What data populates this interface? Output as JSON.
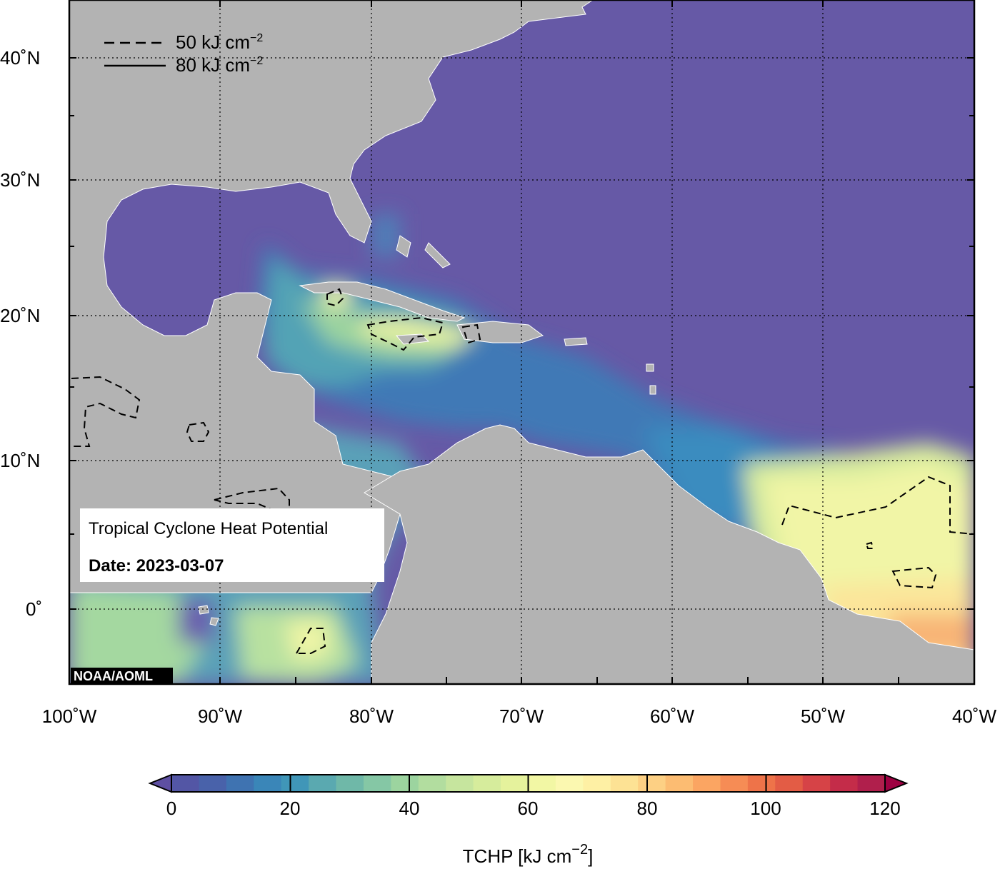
{
  "map": {
    "lon_ticks": [
      "100˚W",
      "90˚W",
      "80˚W",
      "70˚W",
      "60˚W",
      "50˚W",
      "40˚W"
    ],
    "lat_ticks": [
      "40˚N",
      "30˚N",
      "20˚N",
      "10˚N",
      "0˚"
    ],
    "legend": {
      "dashed": "50 kJ cm",
      "solid": "80 kJ cm",
      "exponent": "−2"
    },
    "info_box": {
      "title": "Tropical Cyclone Heat Potential",
      "date": "Date: 2023-03-07"
    },
    "credit": "NOAA/AOML",
    "colors": {
      "land": "#b3b3b3",
      "ocean_low": "#6659a6",
      "ocean_mid": "#3a8cbf",
      "ocean_green": "#9fd59c",
      "ocean_yellow": "#eef5a6",
      "ocean_orange": "#f8b476"
    }
  },
  "colorbar": {
    "ticks": [
      "0",
      "20",
      "40",
      "60",
      "80",
      "100",
      "120"
    ],
    "label": "TCHP [kJ cm",
    "label_exponent": "−2",
    "label_close": "]",
    "colors": [
      "#5e4fa2",
      "#5356a5",
      "#4962aa",
      "#3f73b1",
      "#3a86b8",
      "#4096b8",
      "#5aa9b0",
      "#6fb8a8",
      "#85c7a5",
      "#9cd49f",
      "#b2dd9f",
      "#c6e59e",
      "#d6ec9c",
      "#e5f29c",
      "#f2f7a4",
      "#fbf8b0",
      "#fef0a4",
      "#fde294",
      "#fdd084",
      "#fcbc72",
      "#fba562",
      "#f68c55",
      "#ee7349",
      "#e35c45",
      "#d64347",
      "#c42c49",
      "#b01f4c",
      "#9e0142"
    ]
  }
}
